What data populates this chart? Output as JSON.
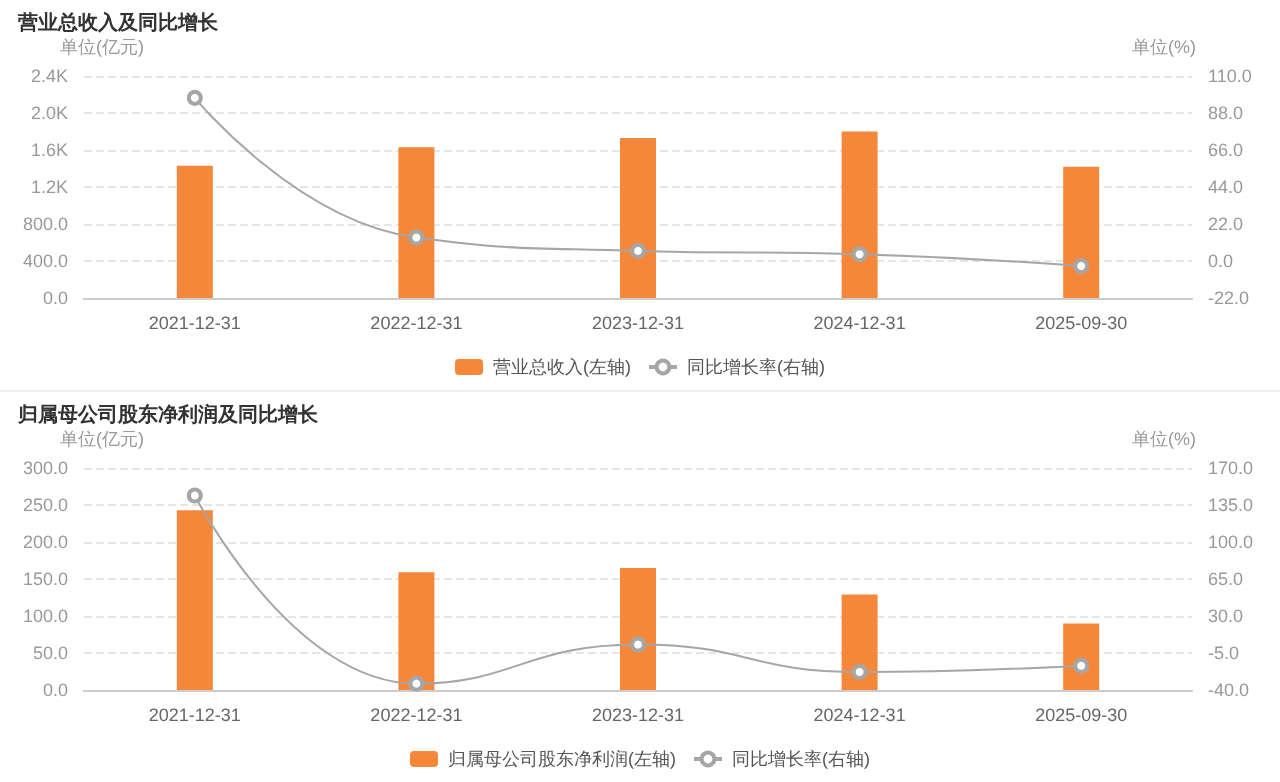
{
  "chart_data": [
    {
      "type": "bar",
      "title": "营业总收入及同比增长",
      "ylabel": "单位(亿元)",
      "y2label": "单位(%)",
      "categories": [
        "2021-12-31",
        "2022-12-31",
        "2023-12-31",
        "2024-12-31",
        "2025-09-30"
      ],
      "series": [
        {
          "name": "营业总收入(左轴)",
          "color": "#f5873a",
          "values": [
            1430,
            1630,
            1730,
            1800,
            1420
          ]
        },
        {
          "name": "同比增长率(右轴)",
          "type": "line",
          "axis": "y2",
          "color": "#a6a6a6",
          "marker": "circle",
          "values": [
            97,
            14,
            6,
            4,
            -3
          ]
        }
      ],
      "ylim": [
        0,
        2400
      ],
      "yticks": [
        {
          "value": 0,
          "label": "0.0"
        },
        {
          "value": 400,
          "label": "400.0"
        },
        {
          "value": 800,
          "label": "800.0"
        },
        {
          "value": 1200,
          "label": "1.2K"
        },
        {
          "value": 1600,
          "label": "1.6K"
        },
        {
          "value": 2000,
          "label": "2.0K"
        },
        {
          "value": 2400,
          "label": "2.4K"
        }
      ],
      "y2lim": [
        -22,
        110
      ],
      "y2ticks": [
        {
          "value": -22,
          "label": "-22.0"
        },
        {
          "value": 0,
          "label": "0.0"
        },
        {
          "value": 22,
          "label": "22.0"
        },
        {
          "value": 44,
          "label": "44.0"
        },
        {
          "value": 66,
          "label": "66.0"
        },
        {
          "value": 88,
          "label": "88.0"
        },
        {
          "value": 110,
          "label": "110.0"
        }
      ],
      "grid": "y",
      "legend": "bottom"
    },
    {
      "type": "bar",
      "title": "归属母公司股东净利润及同比增长",
      "ylabel": "单位(亿元)",
      "y2label": "单位(%)",
      "categories": [
        "2021-12-31",
        "2022-12-31",
        "2023-12-31",
        "2024-12-31",
        "2025-09-30"
      ],
      "series": [
        {
          "name": "归属母公司股东净利润(左轴)",
          "color": "#f5873a",
          "values": [
            243,
            159,
            165,
            129,
            90
          ]
        },
        {
          "name": "同比增长率(右轴)",
          "type": "line",
          "axis": "y2",
          "color": "#a6a6a6",
          "marker": "circle",
          "values": [
            144,
            -34,
            3,
            -23,
            -17
          ]
        }
      ],
      "ylim": [
        0,
        300
      ],
      "yticks": [
        {
          "value": 0,
          "label": "0.0"
        },
        {
          "value": 50,
          "label": "50.0"
        },
        {
          "value": 100,
          "label": "100.0"
        },
        {
          "value": 150,
          "label": "150.0"
        },
        {
          "value": 200,
          "label": "200.0"
        },
        {
          "value": 250,
          "label": "250.0"
        },
        {
          "value": 300,
          "label": "300.0"
        }
      ],
      "y2lim": [
        -40,
        170
      ],
      "y2ticks": [
        {
          "value": -40,
          "label": "-40.0"
        },
        {
          "value": -5,
          "label": "-5.0"
        },
        {
          "value": 30,
          "label": "30.0"
        },
        {
          "value": 65,
          "label": "65.0"
        },
        {
          "value": 100,
          "label": "100.0"
        },
        {
          "value": 135,
          "label": "135.0"
        },
        {
          "value": 170,
          "label": "170.0"
        }
      ],
      "grid": "y",
      "legend": "bottom"
    }
  ]
}
